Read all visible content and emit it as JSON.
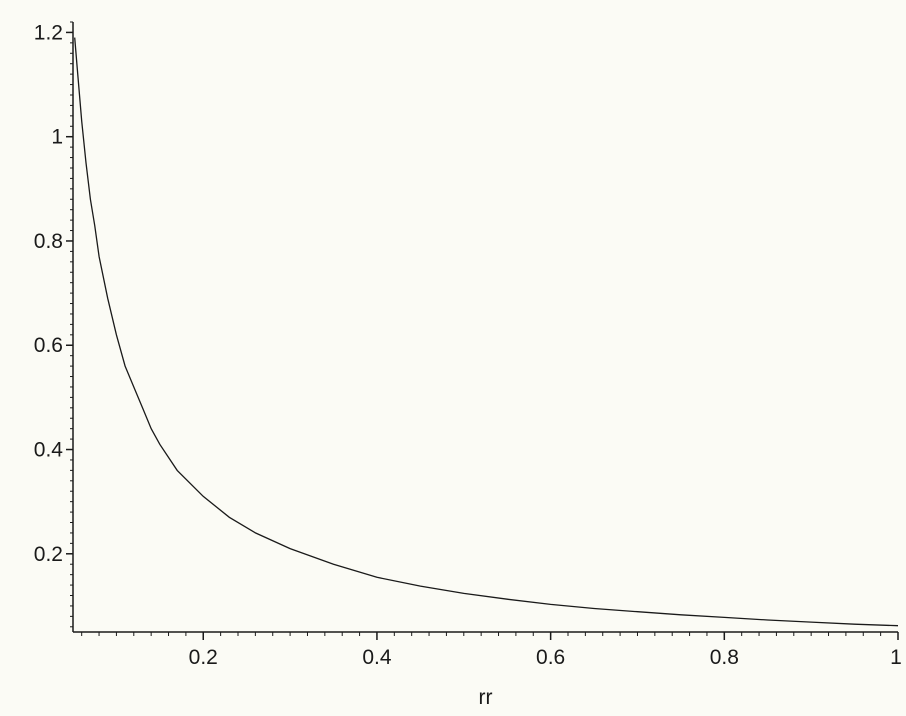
{
  "chart_data": {
    "type": "line",
    "title": "",
    "xlabel": "rr",
    "ylabel": "",
    "xlim": [
      0.05,
      1.0
    ],
    "ylim": [
      0.05,
      1.22
    ],
    "x_ticks": [
      0.2,
      0.4,
      0.6,
      0.8,
      1.0
    ],
    "x_tick_labels": [
      "0.2",
      "0.4",
      "0.6",
      "0.8",
      "1"
    ],
    "y_ticks": [
      0.2,
      0.4,
      0.6,
      0.8,
      1.0,
      1.2
    ],
    "y_tick_labels": [
      "0.2",
      "0.4",
      "0.6",
      "0.8",
      "1",
      "1.2"
    ],
    "grid": false,
    "legend": "none",
    "line_color": "#1a1a1a",
    "series": [
      {
        "x": [
          0.052,
          0.055,
          0.06,
          0.065,
          0.07,
          0.075,
          0.08,
          0.09,
          0.1,
          0.11,
          0.12,
          0.13,
          0.14,
          0.15,
          0.17,
          0.2,
          0.23,
          0.26,
          0.3,
          0.35,
          0.4,
          0.45,
          0.5,
          0.55,
          0.6,
          0.65,
          0.7,
          0.75,
          0.8,
          0.85,
          0.9,
          0.95,
          1.0
        ],
        "y": [
          1.19,
          1.13,
          1.03,
          0.95,
          0.88,
          0.83,
          0.77,
          0.69,
          0.62,
          0.56,
          0.52,
          0.48,
          0.44,
          0.41,
          0.36,
          0.31,
          0.27,
          0.24,
          0.21,
          0.18,
          0.155,
          0.138,
          0.124,
          0.113,
          0.103,
          0.095,
          0.089,
          0.083,
          0.078,
          0.073,
          0.069,
          0.065,
          0.062
        ]
      }
    ]
  }
}
